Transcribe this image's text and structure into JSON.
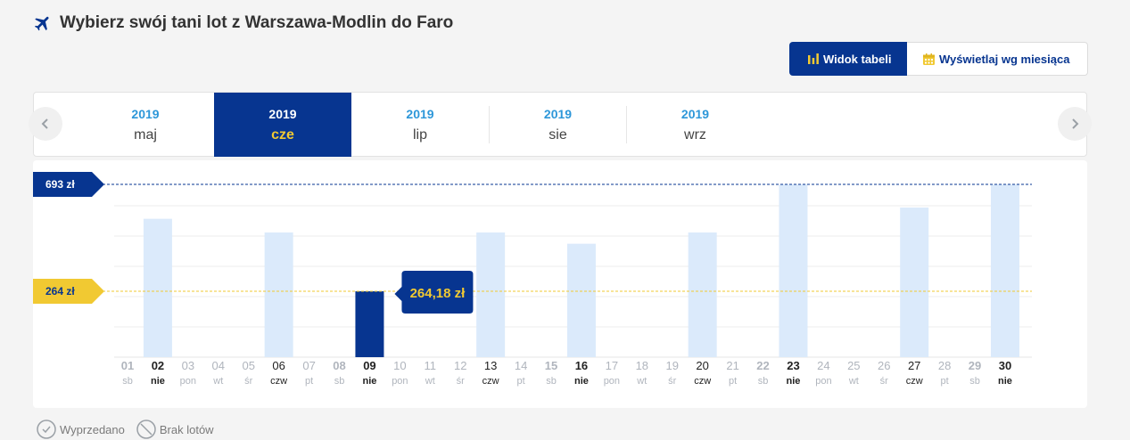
{
  "page": {
    "title": "Wybierz swój tani lot z Warszawa-Modlin do Faro",
    "icon": "plane-icon"
  },
  "view_toggle": {
    "table_label": "Widok tabeli",
    "month_label": "Wyświetlaj wg miesiąca",
    "active": "table"
  },
  "month_tabs": [
    {
      "year": "2019",
      "month": "maj",
      "selected": false
    },
    {
      "year": "2019",
      "month": "cze",
      "selected": true
    },
    {
      "year": "2019",
      "month": "lip",
      "selected": false
    },
    {
      "year": "2019",
      "month": "sie",
      "selected": false
    },
    {
      "year": "2019",
      "month": "wrz",
      "selected": false
    }
  ],
  "colors": {
    "brand": "#073590",
    "accent": "#f1c932",
    "bar": "#dbeafb",
    "bar_selected": "#073590",
    "muted": "#b0b5bd",
    "link_blue": "#2d97d9"
  },
  "chart_data": {
    "type": "bar",
    "currency": "zł",
    "max_label": "693 zł",
    "min_label": "264 zł",
    "ylim": [
      0,
      693
    ],
    "selected_day": "09",
    "tooltip": "264,18 zł",
    "days": [
      {
        "day": "01",
        "dow": "sb",
        "price": null
      },
      {
        "day": "02",
        "dow": "nie",
        "price": 555
      },
      {
        "day": "03",
        "dow": "pon",
        "price": null
      },
      {
        "day": "04",
        "dow": "wt",
        "price": null
      },
      {
        "day": "05",
        "dow": "śr",
        "price": null
      },
      {
        "day": "06",
        "dow": "czw",
        "price": 500
      },
      {
        "day": "07",
        "dow": "pt",
        "price": null
      },
      {
        "day": "08",
        "dow": "sb",
        "price": null
      },
      {
        "day": "09",
        "dow": "nie",
        "price": 264.18
      },
      {
        "day": "10",
        "dow": "pon",
        "price": null
      },
      {
        "day": "11",
        "dow": "wt",
        "price": null
      },
      {
        "day": "12",
        "dow": "śr",
        "price": null
      },
      {
        "day": "13",
        "dow": "czw",
        "price": 500
      },
      {
        "day": "14",
        "dow": "pt",
        "price": null
      },
      {
        "day": "15",
        "dow": "sb",
        "price": null
      },
      {
        "day": "16",
        "dow": "nie",
        "price": 455
      },
      {
        "day": "17",
        "dow": "pon",
        "price": null
      },
      {
        "day": "18",
        "dow": "wt",
        "price": null
      },
      {
        "day": "19",
        "dow": "śr",
        "price": null
      },
      {
        "day": "20",
        "dow": "czw",
        "price": 500
      },
      {
        "day": "21",
        "dow": "pt",
        "price": null
      },
      {
        "day": "22",
        "dow": "sb",
        "price": null
      },
      {
        "day": "23",
        "dow": "nie",
        "price": 693
      },
      {
        "day": "24",
        "dow": "pon",
        "price": null
      },
      {
        "day": "25",
        "dow": "wt",
        "price": null
      },
      {
        "day": "26",
        "dow": "śr",
        "price": null
      },
      {
        "day": "27",
        "dow": "czw",
        "price": 600
      },
      {
        "day": "28",
        "dow": "pt",
        "price": null
      },
      {
        "day": "29",
        "dow": "sb",
        "price": null
      },
      {
        "day": "30",
        "dow": "nie",
        "price": 693
      }
    ]
  },
  "legend": {
    "sold_out": "Wyprzedano",
    "no_flights": "Brak lotów"
  }
}
